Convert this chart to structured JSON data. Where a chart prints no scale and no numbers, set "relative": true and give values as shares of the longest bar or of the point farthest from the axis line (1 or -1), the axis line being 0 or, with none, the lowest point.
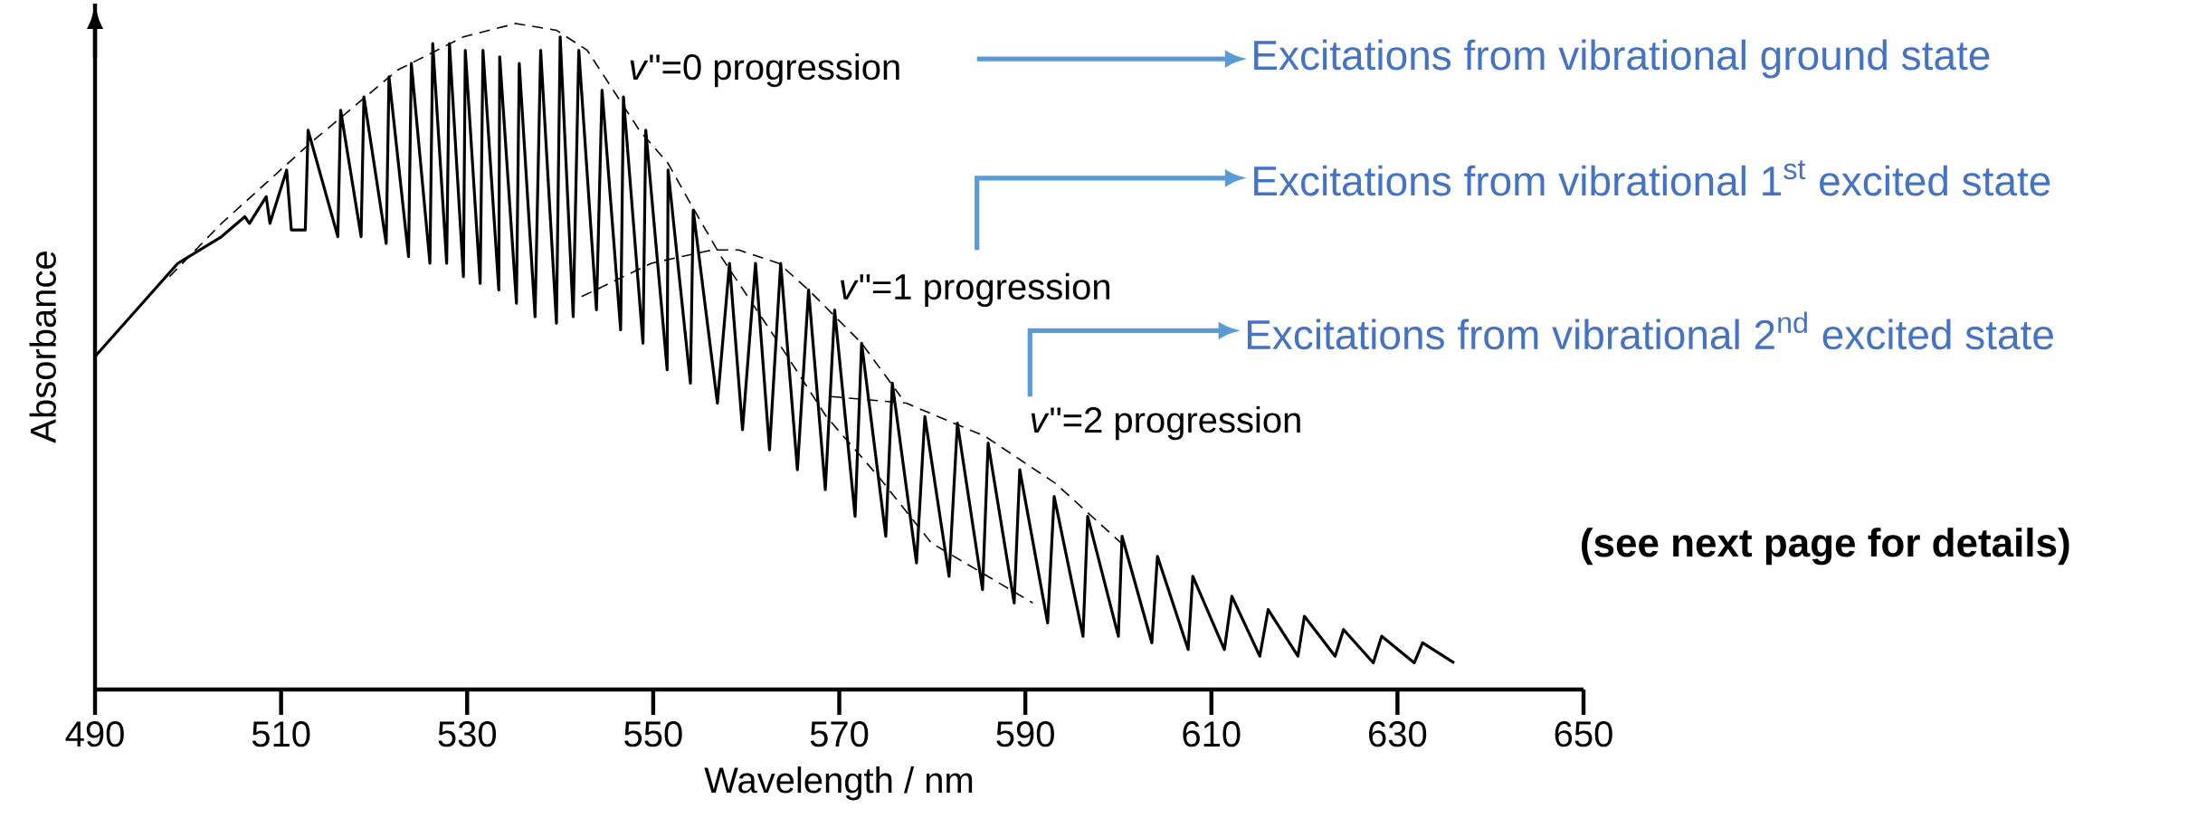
{
  "chart_data": {
    "type": "line",
    "relative": true,
    "xlabel": "Wavelength / nm",
    "ylabel": "Absorbance",
    "xlim": [
      490,
      650
    ],
    "xticks": [
      490,
      510,
      530,
      550,
      570,
      590,
      610,
      630,
      650
    ],
    "series": [
      {
        "color": "#000000",
        "line_style": "solid",
        "x": [
          490.0,
          498.9,
          503.6,
          506.1,
          506.6,
          508.4,
          508.8,
          510.6,
          511.1,
          512.6,
          512.9,
          516.1,
          516.4,
          518.6,
          518.9,
          521.3,
          521.6,
          523.7,
          524.0,
          526.0,
          526.3,
          527.8,
          528.1,
          529.6,
          529.8,
          531.4,
          531.7,
          533.4,
          533.5,
          535.3,
          535.6,
          537.3,
          537.9,
          539.6,
          540.0,
          541.4,
          542.0,
          543.9,
          544.5,
          546.5,
          546.8,
          548.9,
          549.2,
          551.5,
          551.6,
          554.0,
          554.3,
          556.9,
          558.2,
          559.6,
          561.0,
          562.5,
          563.7,
          565.5,
          566.7,
          568.5,
          569.5,
          571.7,
          572.4,
          575.0,
          575.7,
          578.3,
          579.2,
          581.8,
          582.7,
          585.4,
          586.0,
          588.8,
          589.4,
          592.4,
          593.1,
          596.2,
          596.7,
          600.0,
          600.4,
          603.6,
          604.2,
          607.5,
          608.0,
          611.4,
          612.2,
          615.2,
          616.1,
          619.3,
          620.0,
          623.3,
          624.2,
          627.4,
          628.3,
          631.8,
          632.7,
          636.1
        ],
        "values": [
          0.5,
          0.64,
          0.68,
          0.71,
          0.7,
          0.74,
          0.7,
          0.78,
          0.69,
          0.69,
          0.84,
          0.68,
          0.87,
          0.68,
          0.89,
          0.67,
          0.92,
          0.65,
          0.94,
          0.64,
          0.97,
          0.64,
          0.97,
          0.62,
          0.96,
          0.61,
          0.96,
          0.6,
          0.95,
          0.58,
          0.94,
          0.56,
          0.96,
          0.55,
          0.98,
          0.56,
          0.96,
          0.57,
          0.9,
          0.54,
          0.89,
          0.52,
          0.84,
          0.48,
          0.78,
          0.46,
          0.72,
          0.43,
          0.64,
          0.39,
          0.64,
          0.36,
          0.64,
          0.33,
          0.6,
          0.3,
          0.57,
          0.26,
          0.52,
          0.23,
          0.46,
          0.19,
          0.41,
          0.17,
          0.4,
          0.15,
          0.37,
          0.13,
          0.33,
          0.1,
          0.29,
          0.08,
          0.26,
          0.08,
          0.23,
          0.07,
          0.2,
          0.06,
          0.17,
          0.06,
          0.14,
          0.05,
          0.12,
          0.05,
          0.11,
          0.05,
          0.09,
          0.04,
          0.08,
          0.04,
          0.07,
          0.04
        ]
      },
      {
        "color": "#000000",
        "line_style": "dashed",
        "x": [
          498.0,
          503.6,
          513.1,
          522.5,
          529.6,
          535.2,
          539.6,
          542.9,
          548.5,
          551.6,
          554.0,
          557.3,
          563.5,
          568.6,
          574.2,
          579.9,
          590.8
        ],
        "values": [
          0.62,
          0.7,
          0.82,
          0.93,
          0.98,
          1.0,
          0.99,
          0.96,
          0.84,
          0.79,
          0.73,
          0.65,
          0.52,
          0.41,
          0.32,
          0.22,
          0.13
        ]
      },
      {
        "color": "#000000",
        "line_style": "dashed",
        "x": [
          542.3,
          549.8,
          556.3,
          559.2,
          563.5,
          566.7,
          572.4,
          576.6
        ],
        "values": [
          0.59,
          0.64,
          0.66,
          0.66,
          0.64,
          0.6,
          0.52,
          0.44
        ]
      },
      {
        "color": "#000000",
        "line_style": "dashed",
        "x": [
          569.1,
          577.2,
          585.7,
          593.2,
          600.3
        ],
        "values": [
          0.44,
          0.43,
          0.38,
          0.31,
          0.22
        ]
      }
    ],
    "annotations": [
      "*v*\"=0 progression",
      "*v*\"=1 progression",
      "*v*\"=2 progression",
      "Excitations from vibrational ground state",
      "Excitations from vibrational 1$^{st}$ excited state",
      "Excitations from vibrational 2$^{nd}$ excited state",
      "(see next page for details)"
    ]
  }
}
